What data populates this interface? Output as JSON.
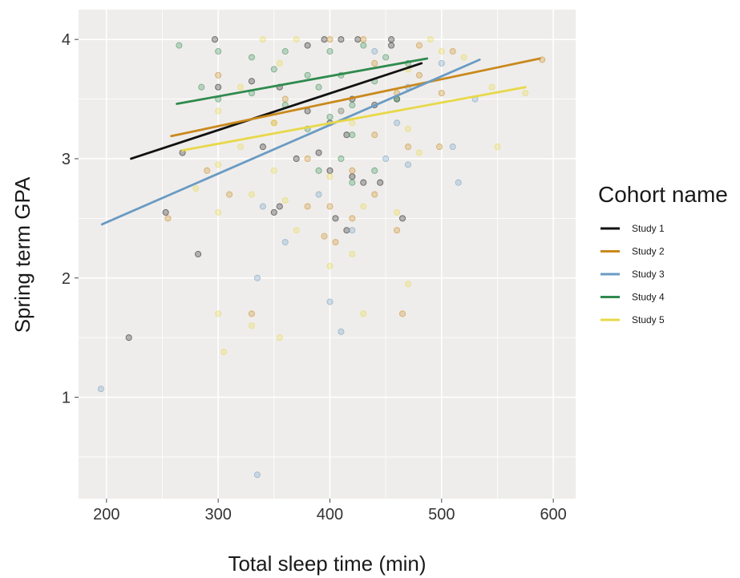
{
  "chart_data": {
    "type": "scatter",
    "title": "",
    "xlabel": "Total sleep time (min)",
    "ylabel": "Spring term GPA",
    "xlim": [
      175,
      620
    ],
    "ylim": [
      0.15,
      4.25
    ],
    "x_ticks": [
      200,
      300,
      400,
      500,
      600
    ],
    "y_ticks": [
      1,
      2,
      3,
      4
    ],
    "grid": true,
    "legend": {
      "title": "Cohort name",
      "position": "right"
    },
    "series": [
      {
        "name": "Study 1",
        "color": "#111111",
        "fit": [
          [
            222,
            3.0
          ],
          [
            482,
            3.8
          ]
        ],
        "points": [
          [
            297,
            4.0
          ],
          [
            395,
            4.0
          ],
          [
            410,
            4.0
          ],
          [
            425,
            4.0
          ],
          [
            455,
            4.0
          ],
          [
            380,
            3.95
          ],
          [
            455,
            3.95
          ],
          [
            330,
            3.65
          ],
          [
            355,
            3.6
          ],
          [
            300,
            3.6
          ],
          [
            420,
            3.5
          ],
          [
            440,
            3.45
          ],
          [
            460,
            3.5
          ],
          [
            380,
            3.4
          ],
          [
            400,
            3.3
          ],
          [
            415,
            3.2
          ],
          [
            268,
            3.05
          ],
          [
            340,
            3.1
          ],
          [
            390,
            3.05
          ],
          [
            370,
            3.0
          ],
          [
            420,
            2.85
          ],
          [
            430,
            2.8
          ],
          [
            400,
            2.9
          ],
          [
            445,
            2.8
          ],
          [
            355,
            2.6
          ],
          [
            350,
            2.55
          ],
          [
            465,
            2.5
          ],
          [
            405,
            2.5
          ],
          [
            415,
            2.4
          ],
          [
            253,
            2.55
          ],
          [
            282,
            2.2
          ],
          [
            220,
            1.5
          ]
        ]
      },
      {
        "name": "Study 2",
        "color": "#c9891c",
        "fit": [
          [
            258,
            3.19
          ],
          [
            588,
            3.84
          ]
        ],
        "points": [
          [
            400,
            4.0
          ],
          [
            430,
            4.0
          ],
          [
            480,
            3.95
          ],
          [
            510,
            3.9
          ],
          [
            440,
            3.8
          ],
          [
            300,
            3.7
          ],
          [
            480,
            3.7
          ],
          [
            360,
            3.5
          ],
          [
            460,
            3.55
          ],
          [
            500,
            3.55
          ],
          [
            410,
            3.4
          ],
          [
            350,
            3.3
          ],
          [
            440,
            3.2
          ],
          [
            470,
            3.1
          ],
          [
            498,
            3.1
          ],
          [
            380,
            3.0
          ],
          [
            420,
            2.9
          ],
          [
            290,
            2.9
          ],
          [
            440,
            2.7
          ],
          [
            380,
            2.6
          ],
          [
            400,
            2.6
          ],
          [
            420,
            2.5
          ],
          [
            310,
            2.7
          ],
          [
            395,
            2.35
          ],
          [
            460,
            2.4
          ],
          [
            405,
            2.3
          ],
          [
            255,
            2.5
          ],
          [
            330,
            1.7
          ],
          [
            465,
            1.7
          ],
          [
            590,
            3.83
          ]
        ]
      },
      {
        "name": "Study 3",
        "color": "#6a9bc3",
        "fit": [
          [
            196,
            2.45
          ],
          [
            534,
            3.83
          ]
        ],
        "points": [
          [
            440,
            3.9
          ],
          [
            500,
            3.8
          ],
          [
            470,
            3.6
          ],
          [
            530,
            3.5
          ],
          [
            410,
            3.4
          ],
          [
            460,
            3.3
          ],
          [
            450,
            3.0
          ],
          [
            470,
            2.95
          ],
          [
            510,
            3.1
          ],
          [
            515,
            2.8
          ],
          [
            390,
            2.7
          ],
          [
            340,
            2.6
          ],
          [
            420,
            2.4
          ],
          [
            360,
            2.3
          ],
          [
            335,
            2.0
          ],
          [
            400,
            1.8
          ],
          [
            410,
            1.55
          ],
          [
            335,
            0.35
          ],
          [
            195,
            1.07
          ]
        ]
      },
      {
        "name": "Study 4",
        "color": "#2f8a4e",
        "fit": [
          [
            263,
            3.46
          ],
          [
            487,
            3.84
          ]
        ],
        "points": [
          [
            265,
            3.95
          ],
          [
            300,
            3.9
          ],
          [
            330,
            3.85
          ],
          [
            360,
            3.9
          ],
          [
            400,
            3.9
          ],
          [
            430,
            3.95
          ],
          [
            450,
            3.85
          ],
          [
            470,
            3.8
          ],
          [
            350,
            3.75
          ],
          [
            380,
            3.7
          ],
          [
            410,
            3.7
          ],
          [
            440,
            3.65
          ],
          [
            390,
            3.6
          ],
          [
            330,
            3.55
          ],
          [
            300,
            3.5
          ],
          [
            460,
            3.5
          ],
          [
            360,
            3.45
          ],
          [
            420,
            3.45
          ],
          [
            400,
            3.35
          ],
          [
            380,
            3.25
          ],
          [
            420,
            3.2
          ],
          [
            410,
            3.0
          ],
          [
            390,
            2.9
          ],
          [
            440,
            2.9
          ],
          [
            420,
            2.8
          ],
          [
            285,
            3.6
          ]
        ]
      },
      {
        "name": "Study 5",
        "color": "#e8d84a",
        "fit": [
          [
            268,
            3.07
          ],
          [
            575,
            3.6
          ]
        ],
        "points": [
          [
            340,
            4.0
          ],
          [
            370,
            4.0
          ],
          [
            490,
            4.0
          ],
          [
            500,
            3.9
          ],
          [
            520,
            3.85
          ],
          [
            355,
            3.8
          ],
          [
            470,
            3.75
          ],
          [
            320,
            3.6
          ],
          [
            545,
            3.6
          ],
          [
            575,
            3.55
          ],
          [
            300,
            3.4
          ],
          [
            350,
            3.3
          ],
          [
            420,
            3.3
          ],
          [
            470,
            3.25
          ],
          [
            320,
            3.1
          ],
          [
            480,
            3.05
          ],
          [
            550,
            3.1
          ],
          [
            300,
            2.95
          ],
          [
            350,
            2.9
          ],
          [
            400,
            2.85
          ],
          [
            280,
            2.75
          ],
          [
            330,
            2.7
          ],
          [
            360,
            2.65
          ],
          [
            430,
            2.6
          ],
          [
            460,
            2.55
          ],
          [
            300,
            2.55
          ],
          [
            370,
            2.4
          ],
          [
            420,
            2.2
          ],
          [
            400,
            2.1
          ],
          [
            470,
            1.95
          ],
          [
            300,
            1.7
          ],
          [
            330,
            1.6
          ],
          [
            355,
            1.5
          ],
          [
            430,
            1.7
          ],
          [
            305,
            1.38
          ]
        ]
      }
    ]
  }
}
